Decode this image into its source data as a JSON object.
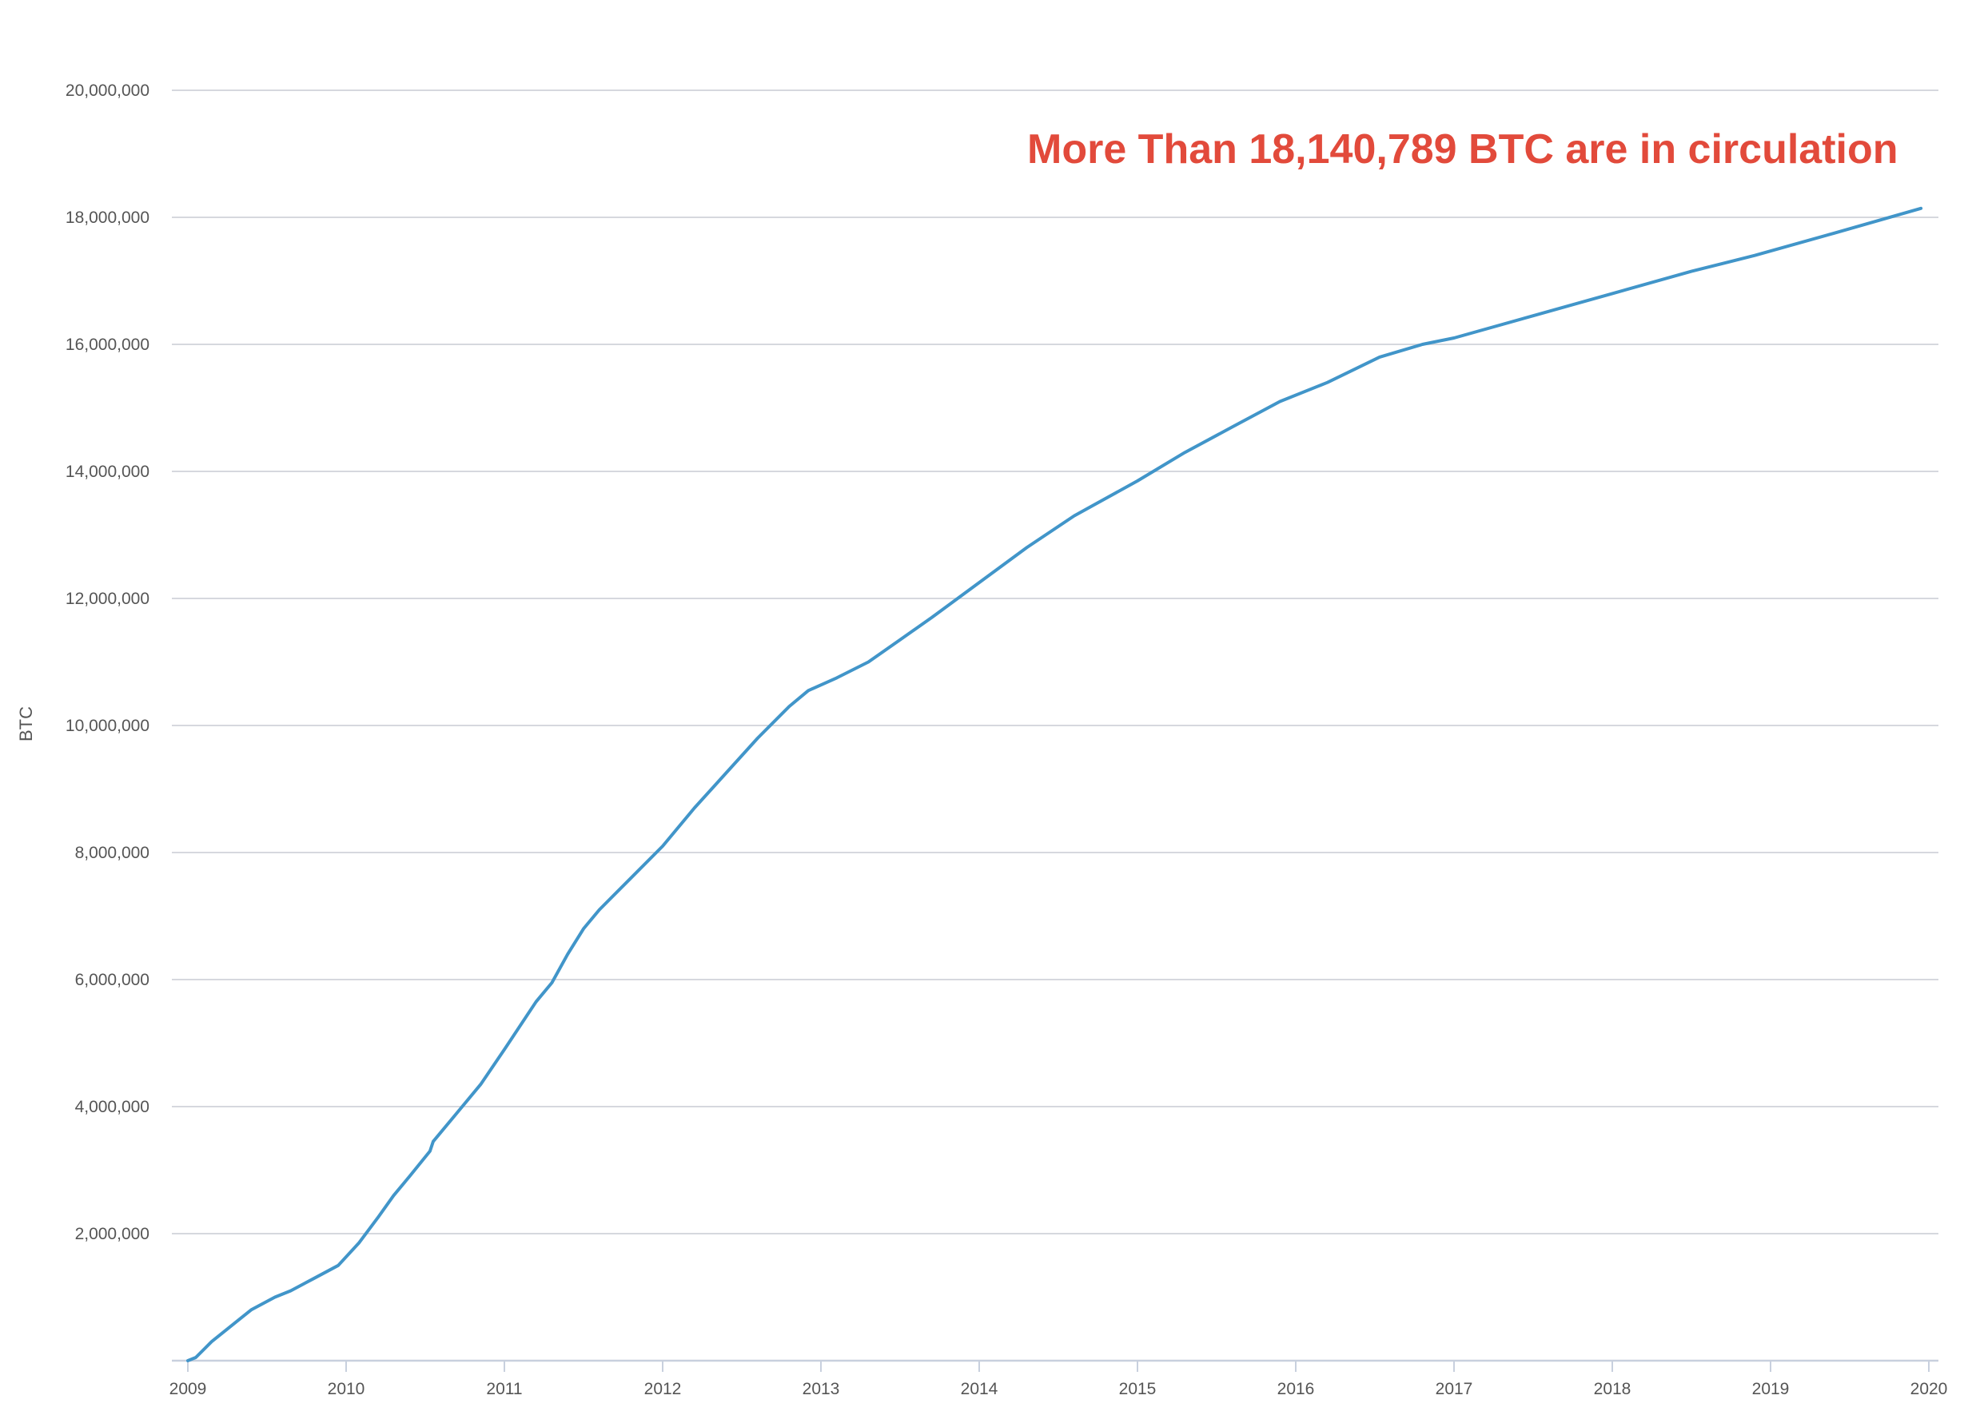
{
  "chart_data": {
    "type": "line",
    "title": "",
    "xlabel": "",
    "ylabel": "BTC",
    "xlim": [
      2009,
      2020
    ],
    "ylim": [
      0,
      20000000
    ],
    "grid": true,
    "x_ticks": [
      2009,
      2010,
      2011,
      2012,
      2013,
      2014,
      2015,
      2016,
      2017,
      2018,
      2019,
      2020
    ],
    "x_tick_labels": [
      "2009",
      "2010",
      "2011",
      "2012",
      "2013",
      "2014",
      "2015",
      "2016",
      "2017",
      "2018",
      "2019",
      "2020"
    ],
    "y_ticks": [
      2000000,
      4000000,
      6000000,
      8000000,
      10000000,
      12000000,
      14000000,
      16000000,
      18000000,
      20000000
    ],
    "y_tick_labels": [
      "2,000,000",
      "4,000,000",
      "6,000,000",
      "8,000,000",
      "10,000,000",
      "12,000,000",
      "14,000,000",
      "16,000,000",
      "18,000,000",
      "20,000,000"
    ],
    "annotation": "More Than 18,140,789 BTC are in circulation",
    "colors": {
      "line": "#4195c9",
      "annotation": "#e24a3b"
    },
    "series": [
      {
        "x": [
          2009.0,
          2009.05,
          2009.15,
          2009.3,
          2009.4,
          2009.55,
          2009.65,
          2009.8,
          2009.95,
          2010.08,
          2010.2,
          2010.3,
          2010.4,
          2010.53,
          2010.55,
          2010.7,
          2010.85,
          2011.0,
          2011.2,
          2011.3,
          2011.4,
          2011.5,
          2011.6,
          2011.8,
          2012.0,
          2012.2,
          2012.4,
          2012.6,
          2012.8,
          2012.92,
          2013.1,
          2013.3,
          2013.5,
          2013.7,
          2014.0,
          2014.3,
          2014.6,
          2015.0,
          2015.3,
          2015.6,
          2015.9,
          2016.2,
          2016.53,
          2016.8,
          2017.0,
          2017.5,
          2018.0,
          2018.5,
          2018.9,
          2019.4,
          2019.95
        ],
        "y": [
          0,
          50000,
          300000,
          600000,
          800000,
          1000000,
          1100000,
          1300000,
          1500000,
          1850000,
          2250000,
          2600000,
          2900000,
          3300000,
          3450000,
          3900000,
          4350000,
          4900000,
          5650000,
          5950000,
          6400000,
          6800000,
          7100000,
          7600000,
          8100000,
          8700000,
          9250000,
          9800000,
          10300000,
          10550000,
          10750000,
          11000000,
          11350000,
          11700000,
          12250000,
          12800000,
          13300000,
          13850000,
          14300000,
          14700000,
          15100000,
          15400000,
          15800000,
          16000000,
          16100000,
          16450000,
          16800000,
          17150000,
          17400000,
          17750000,
          18140789
        ]
      }
    ]
  }
}
